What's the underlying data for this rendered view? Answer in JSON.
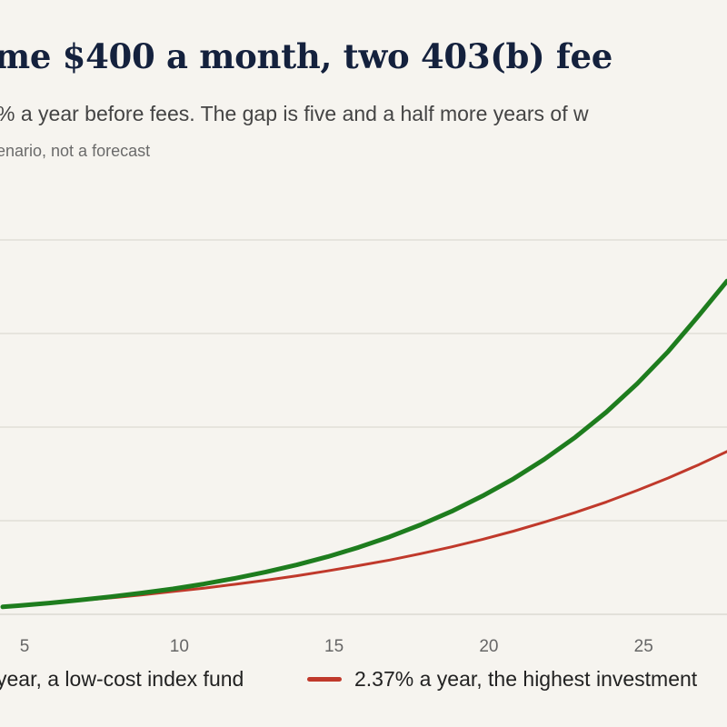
{
  "header": {
    "title": "me $400 a month, two 403(b) fee",
    "subtitle": "% a year before fees. The gap is five and a half more years of w",
    "note": "enario, not a forecast"
  },
  "colors": {
    "background": "#f6f4ef",
    "grid": "#dcd9d2",
    "series_low": "#1e7d1e",
    "series_high": "#c0392b"
  },
  "chart_data": {
    "type": "line",
    "title": "me $400 a month, two 403(b) fee",
    "xlabel": "",
    "ylabel": "",
    "x_ticks": [
      5,
      10,
      15,
      20,
      25
    ],
    "xlim": [
      4.5,
      27.9
    ],
    "y_gridlines": 4,
    "grid": true,
    "legend_position": "bottom",
    "x": [
      4.5,
      5,
      6,
      7,
      8,
      9,
      10,
      11,
      12,
      13,
      14,
      15,
      16,
      17,
      18,
      19,
      20,
      21,
      22,
      23,
      24,
      25,
      26,
      27,
      27.9
    ],
    "series": [
      {
        "name": "year, a low-cost index fund",
        "color": "#1e7d1e",
        "values": [
          0.02,
          0.023,
          0.03,
          0.038,
          0.047,
          0.057,
          0.068,
          0.081,
          0.096,
          0.113,
          0.132,
          0.154,
          0.179,
          0.207,
          0.239,
          0.275,
          0.316,
          0.362,
          0.414,
          0.473,
          0.54,
          0.616,
          0.702,
          0.799,
          0.89
        ]
      },
      {
        "name": "2.37% a year, the highest investment",
        "color": "#c0392b",
        "values": [
          0.02,
          0.023,
          0.03,
          0.037,
          0.044,
          0.052,
          0.061,
          0.07,
          0.08,
          0.091,
          0.103,
          0.116,
          0.13,
          0.145,
          0.162,
          0.18,
          0.2,
          0.222,
          0.246,
          0.272,
          0.3,
          0.331,
          0.364,
          0.4,
          0.435
        ]
      }
    ]
  }
}
